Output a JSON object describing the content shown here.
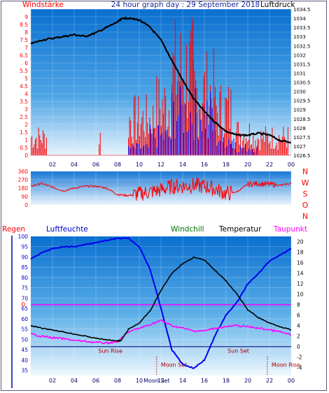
{
  "header": {
    "left_label": "Windstärke",
    "title": "24 hour graph day : 29 September 2018",
    "right_label": "Luftdruck"
  },
  "legend_row": {
    "regen": "Regen",
    "luftfeuchte": "Luftfeuchte",
    "windchill": "Windchill",
    "temperatur": "Temperatur",
    "taupunkt": "Taupunkt"
  },
  "colors": {
    "wind_gust": "#ff0000",
    "wind_avg": "#0000ff",
    "pressure": "#000000",
    "direction": "#ff0000",
    "humidity": "#0000ff",
    "temperature": "#000000",
    "windchill": "#006400",
    "dewpoint": "#ff00ff",
    "rain": "#ff0000",
    "freezing_line": "#ff00ff"
  },
  "chart_data": [
    {
      "type": "line",
      "name": "wind-pressure",
      "x_ticks": [
        "02",
        "04",
        "06",
        "08",
        "10",
        "12",
        "14",
        "16",
        "18",
        "20",
        "22",
        "00"
      ],
      "left_axis": {
        "ylim": [
          0,
          9.5
        ],
        "ticks": [
          "0",
          "0.5",
          "1",
          "1.5",
          "2",
          "2.5",
          "3",
          "3.5",
          "4",
          "4.5",
          "5",
          "5.5",
          "6",
          "6.5",
          "7",
          "7.5",
          "8",
          "8.5",
          "9"
        ]
      },
      "right_axis": {
        "ylim": [
          1026.5,
          1034.5
        ],
        "ticks": [
          "1026.5",
          "1027",
          "1027.5",
          "1028",
          "1028.5",
          "1029",
          "1029.5",
          "1030",
          "1030.5",
          "1031",
          "1031.5",
          "1032",
          "1032.5",
          "1033",
          "1033.5",
          "1034",
          "1034.5"
        ]
      },
      "pressure": {
        "x": [
          0,
          1,
          2,
          3,
          4,
          5,
          6,
          7,
          8,
          8.5,
          9,
          10,
          11,
          12,
          13,
          14,
          15,
          16,
          17,
          18,
          19,
          20,
          21,
          22,
          23,
          24
        ],
        "y": [
          1032.6,
          1032.8,
          1032.9,
          1033.0,
          1033.1,
          1033.0,
          1033.2,
          1033.5,
          1033.8,
          1034.0,
          1034.0,
          1033.9,
          1033.5,
          1032.8,
          1031.7,
          1030.6,
          1029.6,
          1028.9,
          1028.3,
          1027.8,
          1027.6,
          1027.6,
          1027.7,
          1027.6,
          1027.3,
          1027.2
        ]
      },
      "gust_bands": [
        {
          "x": [
            0.0,
            1.5
          ],
          "high": 2.0
        },
        {
          "x": [
            6.3,
            6.5
          ],
          "high": 2.0
        },
        {
          "x": [
            9.0,
            11.5
          ],
          "high": 4.0
        },
        {
          "x": [
            11.5,
            13.0
          ],
          "high": 5.5
        },
        {
          "x": [
            13.0,
            15.0
          ],
          "high": 9.2
        },
        {
          "x": [
            15.0,
            17.0
          ],
          "high": 7.0
        },
        {
          "x": [
            17.0,
            18.5
          ],
          "high": 5.0
        },
        {
          "x": [
            18.5,
            20.5
          ],
          "high": 2.5
        },
        {
          "x": [
            20.5,
            23.8
          ],
          "high": 2.0
        }
      ],
      "avg_bands": [
        {
          "x": [
            9.0,
            11.0
          ],
          "high": 0.8
        },
        {
          "x": [
            11.0,
            13.0
          ],
          "high": 2.0
        },
        {
          "x": [
            13.0,
            17.0
          ],
          "high": 4.5
        },
        {
          "x": [
            17.0,
            19.0
          ],
          "high": 1.8
        },
        {
          "x": [
            19.0,
            21.0
          ],
          "high": 0.8
        }
      ]
    },
    {
      "type": "line",
      "name": "wind-direction",
      "ylim": [
        0,
        360
      ],
      "left_ticks": [
        "0",
        "90",
        "180",
        "270",
        "360"
      ],
      "right_labels": [
        "N",
        "W",
        "S",
        "O",
        "N"
      ],
      "direction": {
        "x": [
          0,
          1,
          2,
          3,
          4,
          5,
          6,
          7,
          8,
          9,
          10,
          11,
          12,
          13,
          14,
          15,
          16,
          17,
          18,
          19,
          20,
          21,
          22,
          23,
          24
        ],
        "y": [
          200,
          230,
          190,
          150,
          180,
          200,
          200,
          180,
          110,
          100,
          120,
          140,
          160,
          200,
          200,
          210,
          200,
          170,
          120,
          140,
          220,
          230,
          220,
          210,
          230
        ]
      }
    },
    {
      "type": "line",
      "name": "temp-humidity",
      "left_axis": {
        "ylim": [
          32.5,
          100
        ],
        "ticks": [
          "35",
          "40",
          "45",
          "50",
          "55",
          "60",
          "65",
          "70",
          "75",
          "80",
          "85",
          "90",
          "95",
          "100"
        ]
      },
      "right_axis": {
        "ylim": [
          -5.5,
          21
        ],
        "ticks": [
          "-4",
          "-2",
          "0",
          "2",
          "4",
          "6",
          "8",
          "10",
          "12",
          "14",
          "16",
          "18",
          "20"
        ]
      },
      "freezing_label": "0",
      "humidity": {
        "x": [
          0,
          1,
          2,
          3,
          4,
          5,
          6,
          7,
          8,
          9,
          10,
          11,
          12,
          13,
          14,
          15,
          16,
          17,
          18,
          19,
          20,
          21,
          22,
          23,
          24
        ],
        "y": [
          89,
          92,
          94,
          95,
          95,
          96,
          97,
          98,
          99,
          99,
          95,
          84,
          65,
          45,
          38,
          36,
          40,
          52,
          62,
          68,
          77,
          82,
          88,
          91,
          94
        ]
      },
      "temperature": {
        "x": [
          0,
          1,
          2,
          3,
          4,
          5,
          6,
          7,
          8,
          8.3,
          9,
          10,
          11,
          12,
          13,
          14,
          15,
          16,
          17,
          18,
          19,
          20,
          21,
          22,
          23,
          24
        ],
        "y": [
          4.0,
          3.5,
          3.2,
          2.8,
          2.4,
          2.0,
          1.6,
          1.3,
          1.1,
          1.1,
          3.3,
          4.5,
          6.8,
          10.7,
          14.0,
          15.8,
          17.0,
          16.5,
          14.5,
          12.5,
          10.0,
          7.0,
          5.5,
          4.5,
          3.8,
          3.2
        ]
      },
      "dewpoint": {
        "x": [
          0,
          1,
          2,
          3,
          4,
          5,
          6,
          7,
          8,
          9,
          10,
          11,
          12,
          13,
          14,
          15,
          16,
          17,
          18,
          19,
          20,
          21,
          22,
          23,
          24
        ],
        "y": [
          2.4,
          2.0,
          1.7,
          1.5,
          1.2,
          1.0,
          0.8,
          0.7,
          0.9,
          2.8,
          3.5,
          4.2,
          5.0,
          4.0,
          3.5,
          3.0,
          3.0,
          3.5,
          3.8,
          4.0,
          3.8,
          3.5,
          3.2,
          2.8,
          2.2
        ]
      },
      "annotations": [
        {
          "text": "Sun Rise",
          "x": 7.2
        },
        {
          "text": "Moon Set",
          "x": 11.6
        },
        {
          "text": "Sun Set",
          "x": 19.0
        },
        {
          "text": "Moon Rise",
          "x": 21.8
        }
      ],
      "x_ticks": [
        "02",
        "04",
        "06",
        "08",
        "10",
        "12",
        "14",
        "16",
        "18",
        "20",
        "22",
        "00"
      ],
      "x_tick_overlay": "Moon Set"
    }
  ]
}
